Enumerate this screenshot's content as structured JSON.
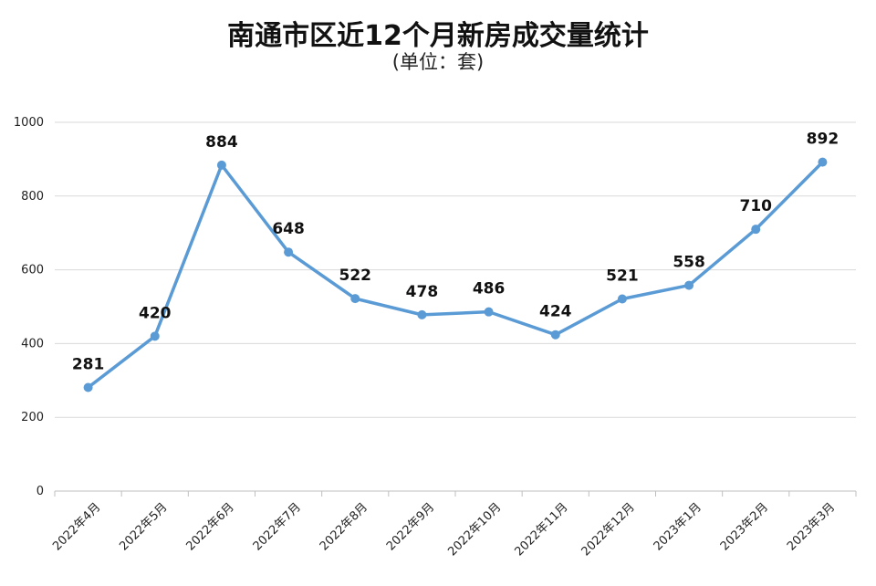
{
  "chart_data": {
    "type": "line",
    "title": "南通市区近12个月新房成交量统计",
    "subtitle": "(单位：套)",
    "categories": [
      "2022年4月",
      "2022年5月",
      "2022年6月",
      "2022年7月",
      "2022年8月",
      "2022年9月",
      "2022年10月",
      "2022年11月",
      "2022年12月",
      "2023年1月",
      "2023年2月",
      "2023年3月"
    ],
    "values": [
      281,
      420,
      884,
      648,
      522,
      478,
      486,
      424,
      521,
      558,
      710,
      892
    ],
    "ylim": [
      0,
      1000
    ],
    "yticks": [
      0,
      200,
      400,
      600,
      800,
      1000
    ],
    "grid": true,
    "line_color": "#5b9bd5"
  }
}
